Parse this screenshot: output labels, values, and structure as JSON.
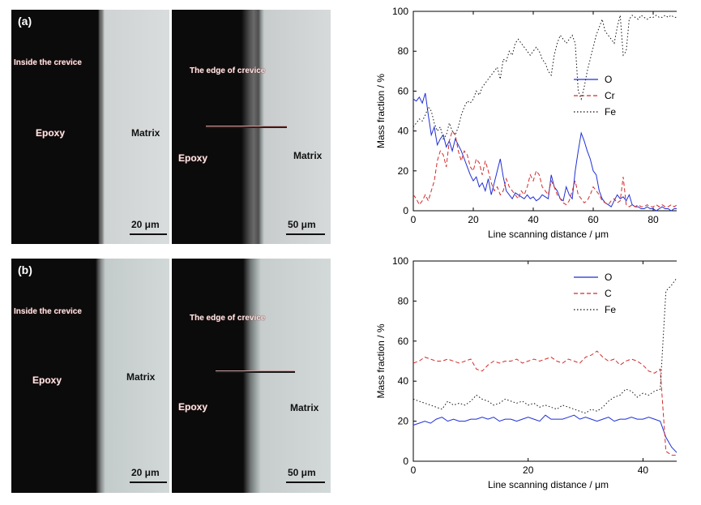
{
  "figure": {
    "panels": [
      {
        "tag": "(a)",
        "left_image": {
          "region_label": "Inside the crevice",
          "epoxy_label": "Epoxy",
          "matrix_label": "Matrix",
          "scale_label": "20 μm"
        },
        "right_image": {
          "region_label": "The edge of crevice",
          "epoxy_label": "Epoxy",
          "matrix_label": "Matrix",
          "scale_label": "50 μm"
        }
      },
      {
        "tag": "(b)",
        "left_image": {
          "region_label": "Inside the crevice",
          "epoxy_label": "Epoxy",
          "matrix_label": "Matrix",
          "scale_label": "20 μm"
        },
        "right_image": {
          "region_label": "The edge of crevice",
          "epoxy_label": "Epoxy",
          "matrix_label": "Matrix",
          "scale_label": "50 μm"
        }
      }
    ]
  },
  "chart_data": [
    {
      "type": "line",
      "xlabel": "Line scanning distance / μm",
      "ylabel": "Mass fraction / %",
      "xlim": [
        0,
        90
      ],
      "ylim": [
        0,
        100
      ],
      "xticks": [
        0,
        20,
        40,
        60,
        80
      ],
      "yticks": [
        0,
        20,
        40,
        60,
        80,
        100
      ],
      "legend_position": "right-middle",
      "series": [
        {
          "name": "O",
          "color": "#1f2fd6",
          "dash": "solid",
          "x": [
            0,
            1,
            2,
            3,
            4,
            5,
            6,
            7,
            8,
            9,
            10,
            11,
            12,
            13,
            14,
            15,
            16,
            17,
            18,
            19,
            20,
            21,
            22,
            23,
            24,
            25,
            26,
            27,
            28,
            29,
            30,
            31,
            32,
            33,
            34,
            35,
            36,
            37,
            38,
            39,
            40,
            41,
            42,
            43,
            44,
            45,
            46,
            47,
            48,
            49,
            50,
            51,
            52,
            53,
            54,
            55,
            56,
            57,
            58,
            59,
            60,
            61,
            62,
            63,
            64,
            65,
            66,
            67,
            68,
            69,
            70,
            71,
            72,
            73,
            74,
            75,
            76,
            77,
            78,
            79,
            80,
            81,
            82,
            83,
            84,
            85,
            86,
            87,
            88,
            89,
            90
          ],
          "y": [
            56,
            55,
            57,
            54,
            59,
            48,
            38,
            42,
            33,
            36,
            38,
            32,
            35,
            30,
            36,
            33,
            30,
            26,
            22,
            18,
            15,
            17,
            12,
            14,
            10,
            16,
            8,
            14,
            20,
            26,
            17,
            10,
            8,
            6,
            9,
            8,
            7,
            6,
            8,
            6,
            7,
            5,
            6,
            8,
            7,
            6,
            18,
            12,
            10,
            6,
            5,
            12,
            8,
            6,
            20,
            30,
            39,
            35,
            30,
            26,
            20,
            18,
            10,
            6,
            4,
            3,
            2,
            5,
            8,
            6,
            7,
            5,
            8,
            3,
            2,
            2,
            1,
            1,
            2,
            1,
            1,
            0,
            1,
            2,
            1,
            1,
            0,
            1,
            1,
            0,
            0
          ]
        },
        {
          "name": "Cr",
          "color": "#d42b2b",
          "dash": "dashed",
          "x": [
            0,
            1,
            2,
            3,
            4,
            5,
            6,
            7,
            8,
            9,
            10,
            11,
            12,
            13,
            14,
            15,
            16,
            17,
            18,
            19,
            20,
            21,
            22,
            23,
            24,
            25,
            26,
            27,
            28,
            29,
            30,
            31,
            32,
            33,
            34,
            35,
            36,
            37,
            38,
            39,
            40,
            41,
            42,
            43,
            44,
            45,
            46,
            47,
            48,
            49,
            50,
            51,
            52,
            53,
            54,
            55,
            56,
            57,
            58,
            59,
            60,
            61,
            62,
            63,
            64,
            65,
            66,
            67,
            68,
            69,
            70,
            71,
            72,
            73,
            74,
            75,
            76,
            77,
            78,
            79,
            80,
            81,
            82,
            83,
            84,
            85,
            86,
            87,
            88,
            89,
            90
          ],
          "y": [
            8,
            6,
            3,
            5,
            8,
            5,
            10,
            15,
            25,
            30,
            28,
            22,
            35,
            40,
            38,
            30,
            25,
            30,
            28,
            22,
            20,
            26,
            24,
            18,
            25,
            20,
            14,
            10,
            12,
            8,
            10,
            16,
            12,
            10,
            8,
            6,
            10,
            8,
            12,
            18,
            15,
            20,
            18,
            12,
            10,
            8,
            15,
            12,
            8,
            6,
            4,
            3,
            5,
            10,
            15,
            8,
            6,
            4,
            5,
            8,
            12,
            10,
            8,
            5,
            4,
            3,
            5,
            6,
            4,
            5,
            17,
            3,
            2,
            3,
            2,
            3,
            2,
            2,
            3,
            2,
            2,
            3,
            2,
            3,
            2,
            2,
            3,
            2,
            3,
            2,
            3
          ]
        },
        {
          "name": "Fe",
          "color": "#111111",
          "dash": "dotted",
          "x": [
            0,
            1,
            2,
            3,
            4,
            5,
            6,
            7,
            8,
            9,
            10,
            11,
            12,
            13,
            14,
            15,
            16,
            17,
            18,
            19,
            20,
            21,
            22,
            23,
            24,
            25,
            26,
            27,
            28,
            29,
            30,
            31,
            32,
            33,
            34,
            35,
            36,
            37,
            38,
            39,
            40,
            41,
            42,
            43,
            44,
            45,
            46,
            47,
            48,
            49,
            50,
            51,
            52,
            53,
            54,
            55,
            56,
            57,
            58,
            59,
            60,
            61,
            62,
            63,
            64,
            65,
            66,
            67,
            68,
            69,
            70,
            71,
            72,
            73,
            74,
            75,
            76,
            77,
            78,
            79,
            80,
            81,
            82,
            83,
            84,
            85,
            86,
            87,
            88,
            89,
            90
          ],
          "y": [
            42,
            44,
            46,
            45,
            48,
            52,
            50,
            44,
            40,
            42,
            36,
            38,
            44,
            40,
            38,
            42,
            48,
            52,
            55,
            54,
            56,
            60,
            58,
            62,
            64,
            66,
            68,
            70,
            72,
            66,
            76,
            75,
            80,
            78,
            84,
            86,
            84,
            82,
            80,
            78,
            80,
            82,
            80,
            76,
            74,
            70,
            68,
            78,
            84,
            88,
            86,
            84,
            86,
            88,
            84,
            60,
            56,
            62,
            70,
            76,
            82,
            88,
            92,
            96,
            90,
            88,
            86,
            84,
            92,
            98,
            78,
            80,
            96,
            98,
            97,
            96,
            98,
            97,
            96,
            97,
            97,
            98,
            97,
            97,
            98,
            97,
            98,
            97,
            97,
            98,
            97
          ]
        }
      ]
    },
    {
      "type": "line",
      "xlabel": "Line scanning distance / μm",
      "ylabel": "Mass fraction / %",
      "xlim": [
        0,
        47
      ],
      "ylim": [
        0,
        100
      ],
      "xticks": [
        0,
        20,
        40
      ],
      "yticks": [
        0,
        20,
        40,
        60,
        80,
        100
      ],
      "legend_position": "top-right",
      "series": [
        {
          "name": "O",
          "color": "#1f2fd6",
          "dash": "solid",
          "x": [
            0,
            1,
            2,
            3,
            4,
            5,
            6,
            7,
            8,
            9,
            10,
            11,
            12,
            13,
            14,
            15,
            16,
            17,
            18,
            19,
            20,
            21,
            22,
            23,
            24,
            25,
            26,
            27,
            28,
            29,
            30,
            31,
            32,
            33,
            34,
            35,
            36,
            37,
            38,
            39,
            40,
            41,
            42,
            43,
            44,
            45,
            46,
            47
          ],
          "y": [
            18,
            19,
            20,
            19,
            21,
            22,
            20,
            21,
            20,
            20,
            21,
            21,
            22,
            21,
            22,
            20,
            21,
            21,
            20,
            21,
            22,
            21,
            20,
            23,
            21,
            21,
            21,
            22,
            23,
            21,
            22,
            21,
            20,
            21,
            22,
            20,
            21,
            21,
            22,
            21,
            21,
            22,
            21,
            20,
            12,
            7,
            4,
            3
          ]
        },
        {
          "name": "C",
          "color": "#d42b2b",
          "dash": "dashed",
          "x": [
            0,
            1,
            2,
            3,
            4,
            5,
            6,
            7,
            8,
            9,
            10,
            11,
            12,
            13,
            14,
            15,
            16,
            17,
            18,
            19,
            20,
            21,
            22,
            23,
            24,
            25,
            26,
            27,
            28,
            29,
            30,
            31,
            32,
            33,
            34,
            35,
            36,
            37,
            38,
            39,
            40,
            41,
            42,
            43,
            44,
            45,
            46,
            47
          ],
          "y": [
            49,
            50,
            52,
            51,
            50,
            50,
            51,
            50,
            49,
            50,
            51,
            46,
            45,
            48,
            50,
            49,
            50,
            50,
            51,
            49,
            50,
            51,
            50,
            51,
            52,
            50,
            49,
            51,
            50,
            49,
            52,
            53,
            55,
            52,
            50,
            51,
            48,
            50,
            51,
            50,
            48,
            45,
            44,
            46,
            5,
            3,
            3,
            2
          ]
        },
        {
          "name": "Fe",
          "color": "#111111",
          "dash": "dotted",
          "x": [
            0,
            1,
            2,
            3,
            4,
            5,
            6,
            7,
            8,
            9,
            10,
            11,
            12,
            13,
            14,
            15,
            16,
            17,
            18,
            19,
            20,
            21,
            22,
            23,
            24,
            25,
            26,
            27,
            28,
            29,
            30,
            31,
            32,
            33,
            34,
            35,
            36,
            37,
            38,
            39,
            40,
            41,
            42,
            43,
            44,
            45,
            46,
            47
          ],
          "y": [
            31,
            30,
            29,
            28,
            27,
            26,
            30,
            28,
            29,
            28,
            30,
            33,
            31,
            30,
            28,
            29,
            31,
            30,
            29,
            30,
            28,
            29,
            27,
            28,
            27,
            26,
            28,
            27,
            26,
            25,
            24,
            26,
            25,
            27,
            30,
            32,
            33,
            36,
            35,
            32,
            34,
            33,
            35,
            36,
            85,
            88,
            92,
            95
          ]
        }
      ]
    }
  ]
}
